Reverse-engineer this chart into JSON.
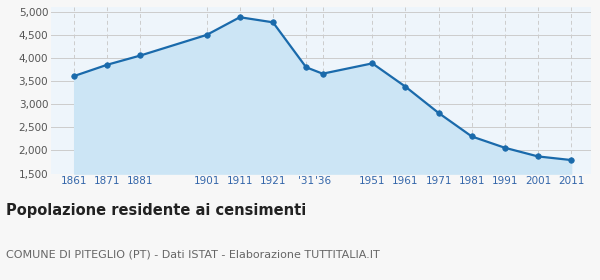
{
  "years": [
    1861,
    1871,
    1881,
    1901,
    1911,
    1921,
    1931,
    1936,
    1951,
    1961,
    1971,
    1981,
    1991,
    2001,
    2011
  ],
  "population": [
    3609,
    3853,
    4052,
    4497,
    4879,
    4769,
    3798,
    3659,
    3882,
    3378,
    2810,
    2303,
    2058,
    1871,
    1793
  ],
  "line_color": "#1a6aab",
  "fill_color": "#cce5f5",
  "marker_color": "#1a6aab",
  "background_color": "#f7f7f7",
  "plot_bg_color": "#eef5fb",
  "grid_color_h": "#cccccc",
  "grid_color_v": "#cccccc",
  "ylim": [
    1500,
    5100
  ],
  "yticks": [
    1500,
    2000,
    2500,
    3000,
    3500,
    4000,
    4500,
    5000
  ],
  "ytick_labels": [
    "1,500",
    "2,000",
    "2,500",
    "3,000",
    "3,500",
    "4,000",
    "4,500",
    "5,000"
  ],
  "xtick_positions": [
    1861,
    1871,
    1881,
    1901,
    1911,
    1921,
    1931,
    1936,
    1951,
    1961,
    1971,
    1981,
    1991,
    2001,
    2011
  ],
  "xtick_labels": [
    "1861",
    "1871",
    "1881",
    "1901",
    "1911",
    "1921",
    "'31",
    "'36",
    "1951",
    "1961",
    "1971",
    "1981",
    "1991",
    "2001",
    "2011"
  ],
  "xlim_left": 1854,
  "xlim_right": 2017,
  "title": "Popolazione residente ai censimenti",
  "subtitle": "COMUNE DI PITEGLIO (PT) - Dati ISTAT - Elaborazione TUTTITALIA.IT",
  "title_fontsize": 10.5,
  "subtitle_fontsize": 8.0,
  "tick_fontsize": 7.5,
  "line_width": 1.6,
  "marker_size": 4.0
}
